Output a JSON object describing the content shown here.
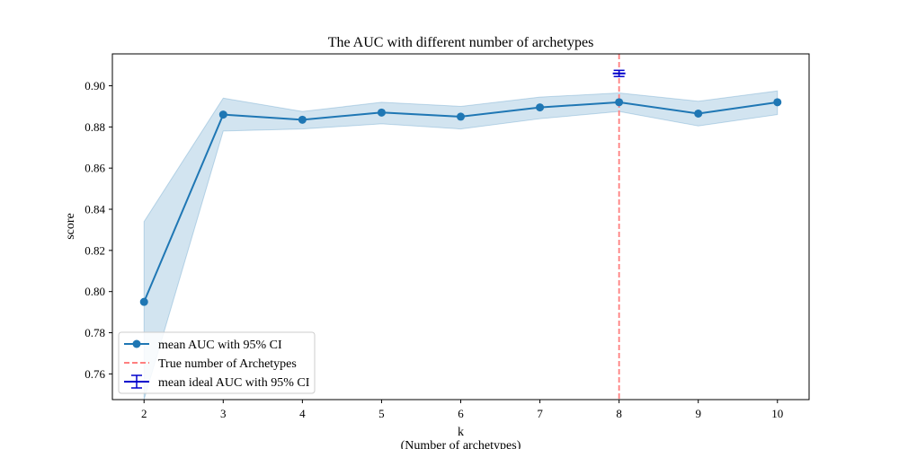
{
  "chart_data": {
    "type": "line",
    "title": "The AUC with different number of archetypes",
    "xlabel": "k",
    "xlabel_sub": "(Number of archetypes)",
    "ylabel": "score",
    "x": [
      2,
      3,
      4,
      5,
      6,
      7,
      8,
      9,
      10
    ],
    "xticks": [
      "2",
      "3",
      "4",
      "5",
      "6",
      "7",
      "8",
      "9",
      "10"
    ],
    "yticks": [
      "0.76",
      "0.78",
      "0.80",
      "0.82",
      "0.84",
      "0.86",
      "0.88",
      "0.90"
    ],
    "ytick_values": [
      0.76,
      0.78,
      0.8,
      0.82,
      0.84,
      0.86,
      0.88,
      0.9
    ],
    "xlim": [
      1.6,
      10.4
    ],
    "ylim": [
      0.7475,
      0.9155
    ],
    "series": [
      {
        "name": "mean AUC with 95% CI",
        "values": [
          0.795,
          0.886,
          0.8835,
          0.887,
          0.885,
          0.8895,
          0.892,
          0.8865,
          0.892
        ],
        "ci_lower": [
          0.7475,
          0.878,
          0.879,
          0.8815,
          0.879,
          0.884,
          0.8875,
          0.8805,
          0.886
        ],
        "ci_upper": [
          0.834,
          0.894,
          0.8875,
          0.892,
          0.89,
          0.8945,
          0.8965,
          0.8925,
          0.8975
        ],
        "color": "#1f77b4"
      }
    ],
    "vline": {
      "name": "True number of Archetypes",
      "x": 8,
      "color": "#ff7f7f"
    },
    "ideal": {
      "name": "mean ideal AUC with 95% CI",
      "x": 8,
      "value": 0.906,
      "lower": 0.9045,
      "upper": 0.9075,
      "color": "#0000cc"
    },
    "legend_position": "lower-left",
    "grid": false
  }
}
